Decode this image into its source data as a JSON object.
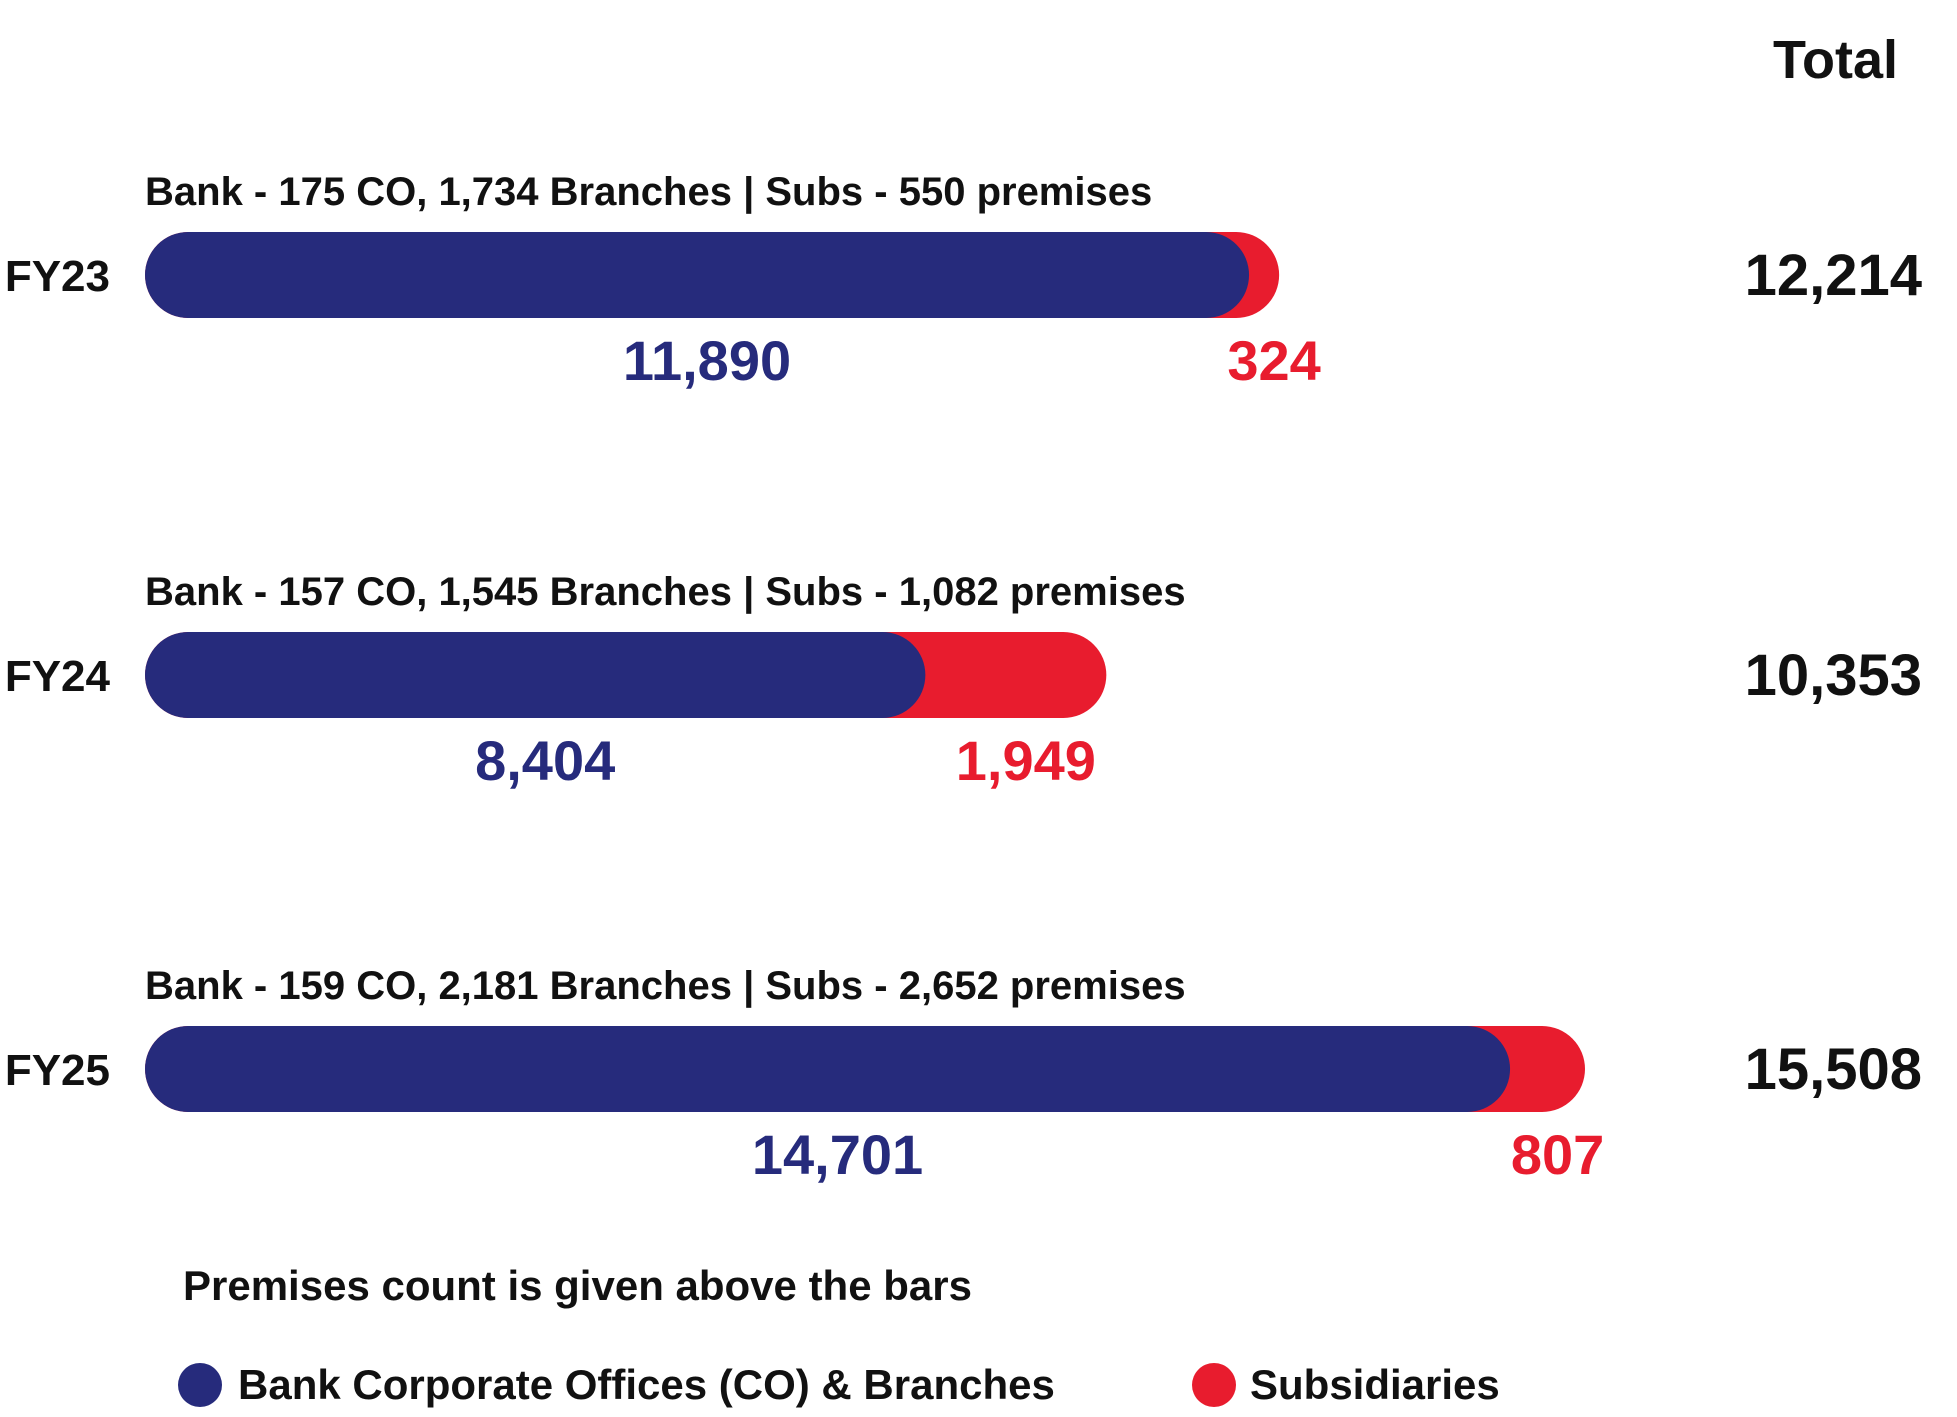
{
  "chart_data": {
    "type": "bar",
    "orientation": "horizontal",
    "stacked": true,
    "total_header": "Total",
    "categories": [
      "FY23",
      "FY24",
      "FY25"
    ],
    "series": [
      {
        "name": "Bank Corporate Offices (CO) & Branches",
        "color": "#262b7c",
        "values": [
          11890,
          8404,
          14701
        ]
      },
      {
        "name": "Subsidiaries",
        "color": "#e81c2e",
        "values": [
          324,
          1949,
          807
        ]
      }
    ],
    "value_labels": [
      [
        "11,890",
        "324"
      ],
      [
        "8,404",
        "1,949"
      ],
      [
        "14,701",
        "807"
      ]
    ],
    "totals": [
      "12,214",
      "10,353",
      "15,508"
    ],
    "premises_notes": [
      "Bank - 175 CO, 1,734 Branches | Subs - 550 premises",
      "Bank - 157 CO, 1,545 Branches | Subs - 1,082 premises",
      "Bank - 159 CO, 2,181 Branches | Subs - 2,652 premises"
    ],
    "footnote": "Premises count is given above the bars",
    "legend_position": "bottom",
    "xlim": [
      0,
      15508
    ]
  }
}
